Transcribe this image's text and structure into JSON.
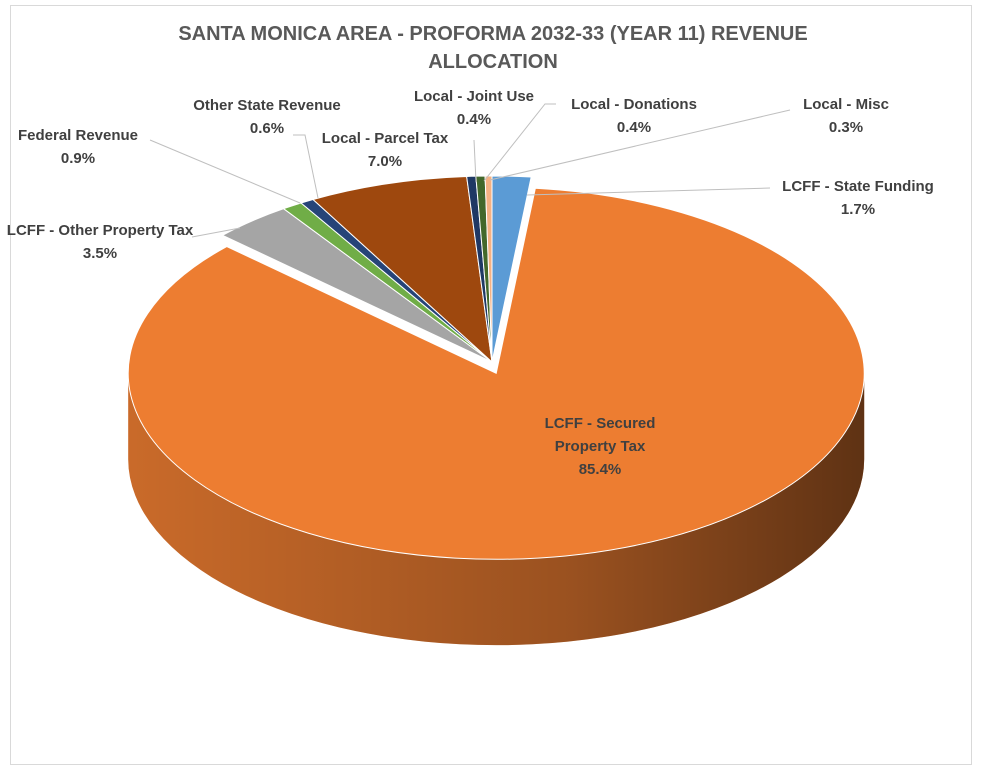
{
  "chart_data": {
    "type": "pie",
    "title": "SANTA MONICA AREA - PROFORMA 2032-33 (YEAR 11) REVENUE ALLOCATION",
    "categories": [
      "LCFF - State Funding",
      "LCFF - Secured Property Tax",
      "LCFF - Other Property Tax",
      "Federal Revenue",
      "Other State Revenue",
      "Local - Parcel Tax",
      "Local - Joint Use",
      "Local - Donations",
      "Local - Misc"
    ],
    "values": [
      1.7,
      85.4,
      3.5,
      0.9,
      0.6,
      7.0,
      0.4,
      0.4,
      0.3
    ],
    "value_labels": [
      "1.7%",
      "85.4%",
      "3.5%",
      "0.9%",
      "0.6%",
      "7.0%",
      "0.4%",
      "0.4%",
      "0.3%"
    ],
    "colors": [
      "#5b9bd5",
      "#ed7d31",
      "#a5a5a5",
      "#70ad47",
      "#264478",
      "#9e480e",
      "#1f3864",
      "#43682b",
      "#f4b183"
    ]
  }
}
